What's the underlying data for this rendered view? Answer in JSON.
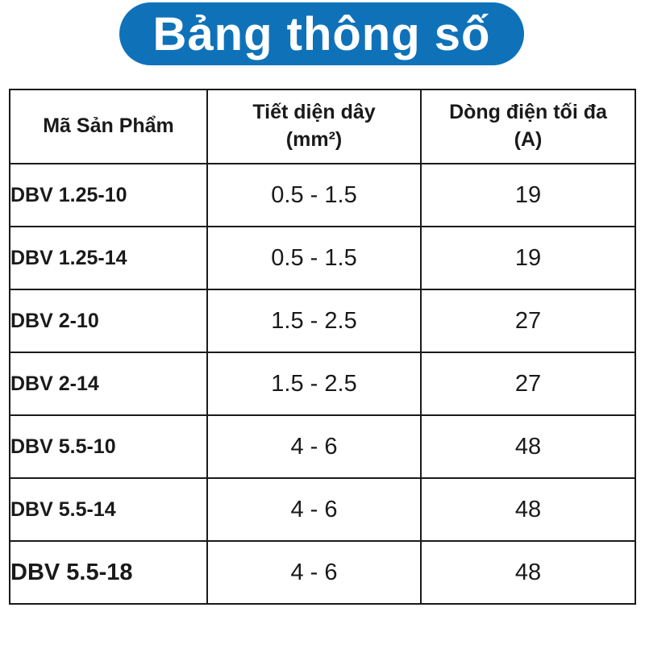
{
  "title": "Bảng thông số",
  "colors": {
    "title_background": "#0f72b9",
    "title_text": "#ffffff",
    "border": "#1a1a1a"
  },
  "table": {
    "headers": [
      {
        "line1": "Mã Sản Phẩm",
        "line2": ""
      },
      {
        "line1": "Tiết diện dây",
        "line2": "(mm²)"
      },
      {
        "line1": "Dòng điện tối đa",
        "line2": "(A)"
      }
    ],
    "rows": [
      {
        "code": "DBV 1.25-10",
        "wire": "0.5 - 1.5",
        "current": "19"
      },
      {
        "code": "DBV 1.25-14",
        "wire": "0.5 - 1.5",
        "current": "19"
      },
      {
        "code": "DBV 2-10",
        "wire": "1.5 - 2.5",
        "current": "27"
      },
      {
        "code": "DBV 2-14",
        "wire": "1.5 - 2.5",
        "current": "27"
      },
      {
        "code": "DBV 5.5-10",
        "wire": "4 - 6",
        "current": "48"
      },
      {
        "code": "DBV 5.5-14",
        "wire": "4 - 6",
        "current": "48"
      },
      {
        "code": "DBV 5.5-18",
        "wire": "4 - 6",
        "current": "48"
      }
    ]
  }
}
